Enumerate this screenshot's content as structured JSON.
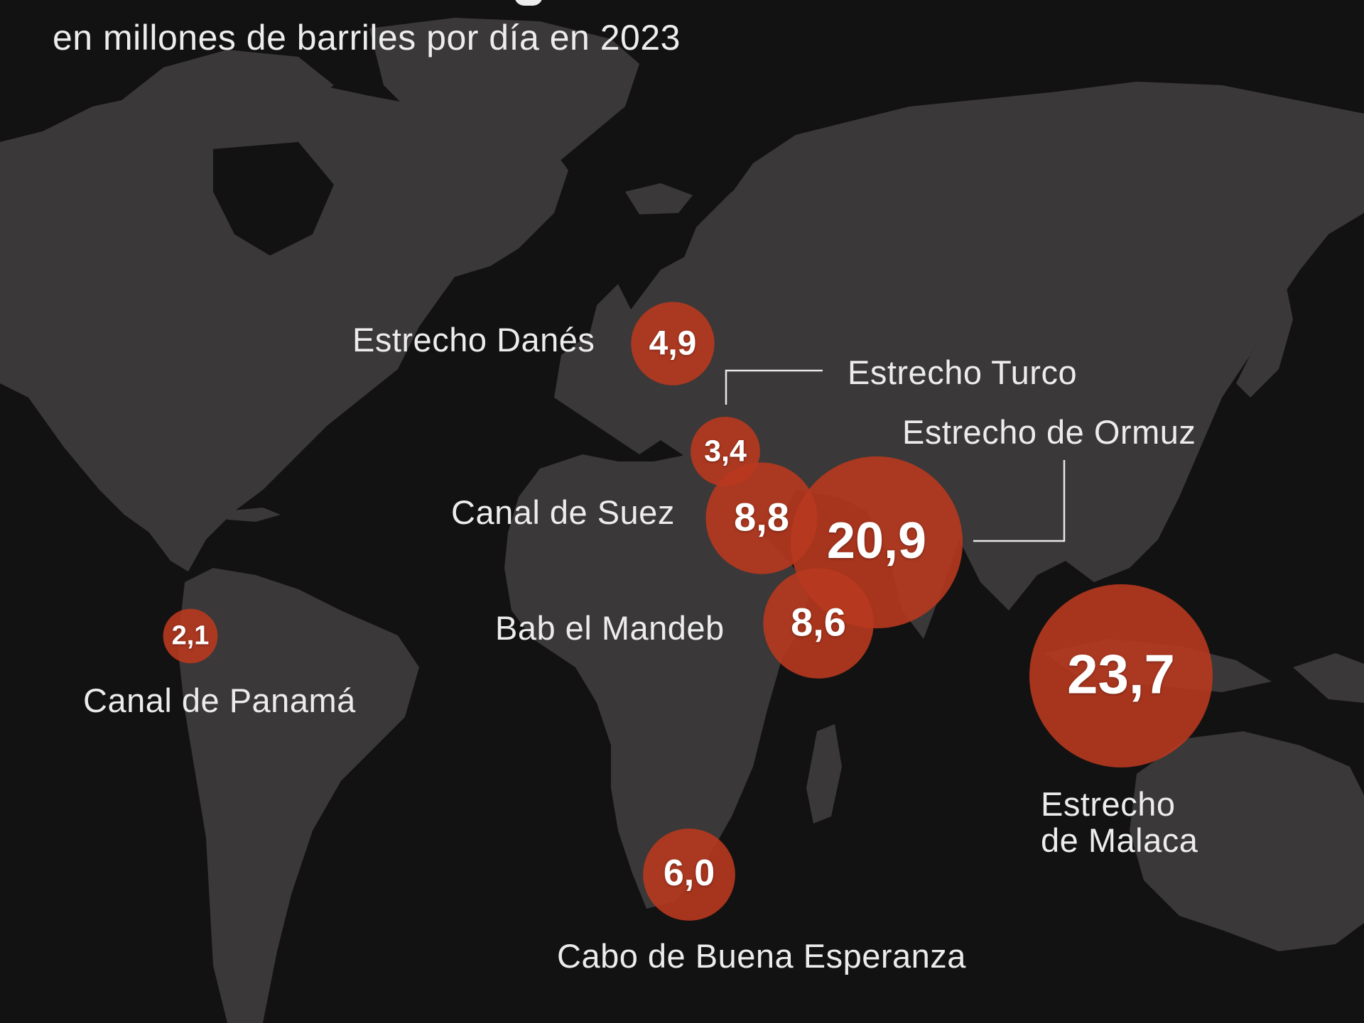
{
  "subtitle": "en millones de barriles por día en 2023",
  "colors": {
    "background": "#131212",
    "land": "#3a3838",
    "bubble": "#b8391f",
    "leader": "#e8e8e8"
  },
  "chokepoints": [
    {
      "id": "estrecho-danes",
      "name": "Estrecho Danés",
      "value": 4.9,
      "label": "4,9"
    },
    {
      "id": "estrecho-turco",
      "name": "Estrecho Turco",
      "value": 3.4,
      "label": "3,4"
    },
    {
      "id": "canal-de-suez",
      "name": "Canal de Suez",
      "value": 8.8,
      "label": "8,8"
    },
    {
      "id": "estrecho-de-ormuz",
      "name": "Estrecho de Ormuz",
      "value": 20.9,
      "label": "20,9"
    },
    {
      "id": "bab-el-mandeb",
      "name": "Bab el Mandeb",
      "value": 8.6,
      "label": "8,6"
    },
    {
      "id": "canal-de-panama",
      "name": "Canal de Panamá",
      "value": 2.1,
      "label": "2,1"
    },
    {
      "id": "estrecho-de-malaca",
      "name": "Estrecho\nde Malaca",
      "value": 23.7,
      "label": "23,7"
    },
    {
      "id": "cabo-de-buena-esperanza",
      "name": "Cabo de Buena Esperanza",
      "value": 6.0,
      "label": "6,0"
    }
  ]
}
